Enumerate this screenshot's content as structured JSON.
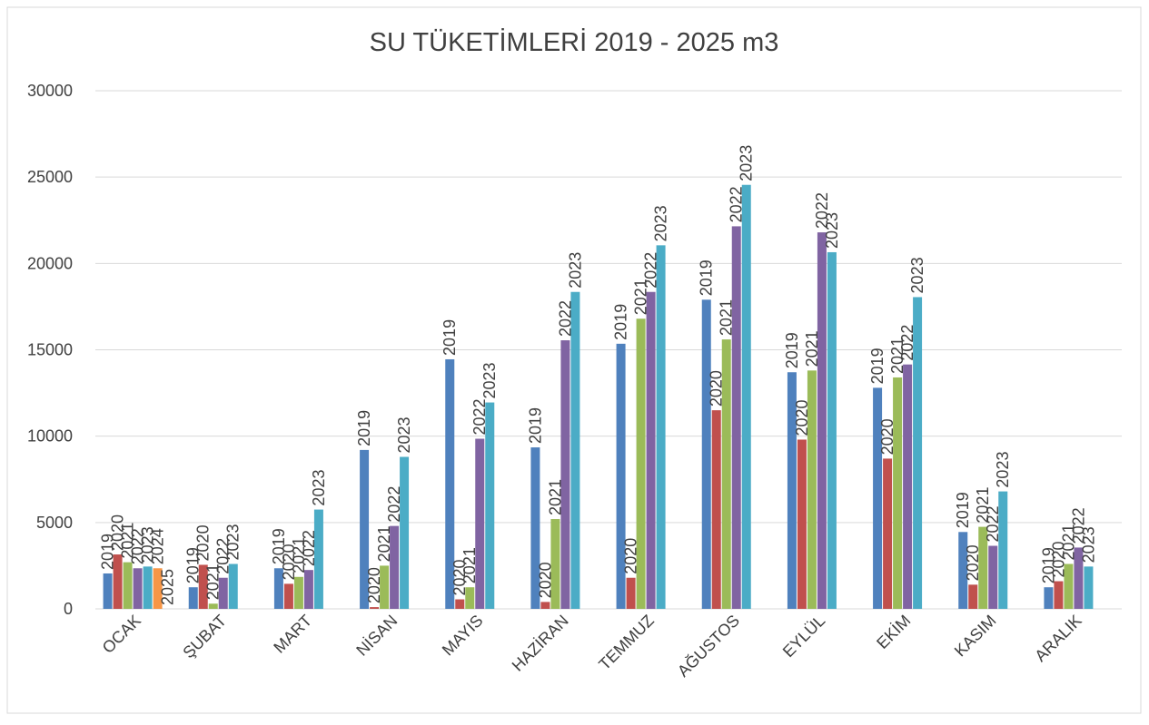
{
  "chart_data": {
    "type": "bar",
    "title": "SU TÜKETİMLERİ 2019 - 2025 m3",
    "categories": [
      "OCAK",
      "ŞUBAT",
      "MART",
      "NİSAN",
      "MAYIS",
      "HAZİRAN",
      "TEMMUZ",
      "AĞUSTOS",
      "EYLÜL",
      "EKİM",
      "KASIM",
      "ARALIK"
    ],
    "series": [
      {
        "name": "2019",
        "color": "#4f81bd",
        "values": [
          2050,
          1250,
          2350,
          9200,
          14450,
          9350,
          15350,
          17900,
          13700,
          12800,
          4450,
          1250
        ]
      },
      {
        "name": "2020",
        "color": "#c0504d",
        "values": [
          3150,
          2550,
          1450,
          100,
          550,
          400,
          1800,
          11500,
          9800,
          8700,
          1400,
          1600
        ]
      },
      {
        "name": "2021",
        "color": "#9bbb59",
        "values": [
          2700,
          300,
          1850,
          2500,
          1250,
          5200,
          16800,
          15600,
          13800,
          13400,
          4750,
          2600
        ]
      },
      {
        "name": "2022",
        "color": "#8064a2",
        "values": [
          2350,
          1800,
          2250,
          4800,
          9850,
          15550,
          18350,
          22150,
          21800,
          14150,
          3650,
          3550
        ]
      },
      {
        "name": "2023",
        "color": "#4bacc6",
        "values": [
          2450,
          2600,
          5750,
          8800,
          11950,
          18350,
          21050,
          24550,
          20650,
          18050,
          6800,
          2450
        ]
      },
      {
        "name": "2024",
        "color": "#f79646",
        "values": [
          2350,
          null,
          null,
          null,
          null,
          null,
          null,
          null,
          null,
          null,
          null,
          null
        ]
      },
      {
        "name": "2025",
        "color": "#2c4d75",
        "values": [
          0,
          null,
          null,
          null,
          null,
          null,
          null,
          null,
          null,
          null,
          null,
          null
        ]
      }
    ],
    "ylim": [
      0,
      30000
    ],
    "yticks": [
      0,
      5000,
      10000,
      15000,
      20000,
      25000,
      30000
    ],
    "grid": true
  }
}
